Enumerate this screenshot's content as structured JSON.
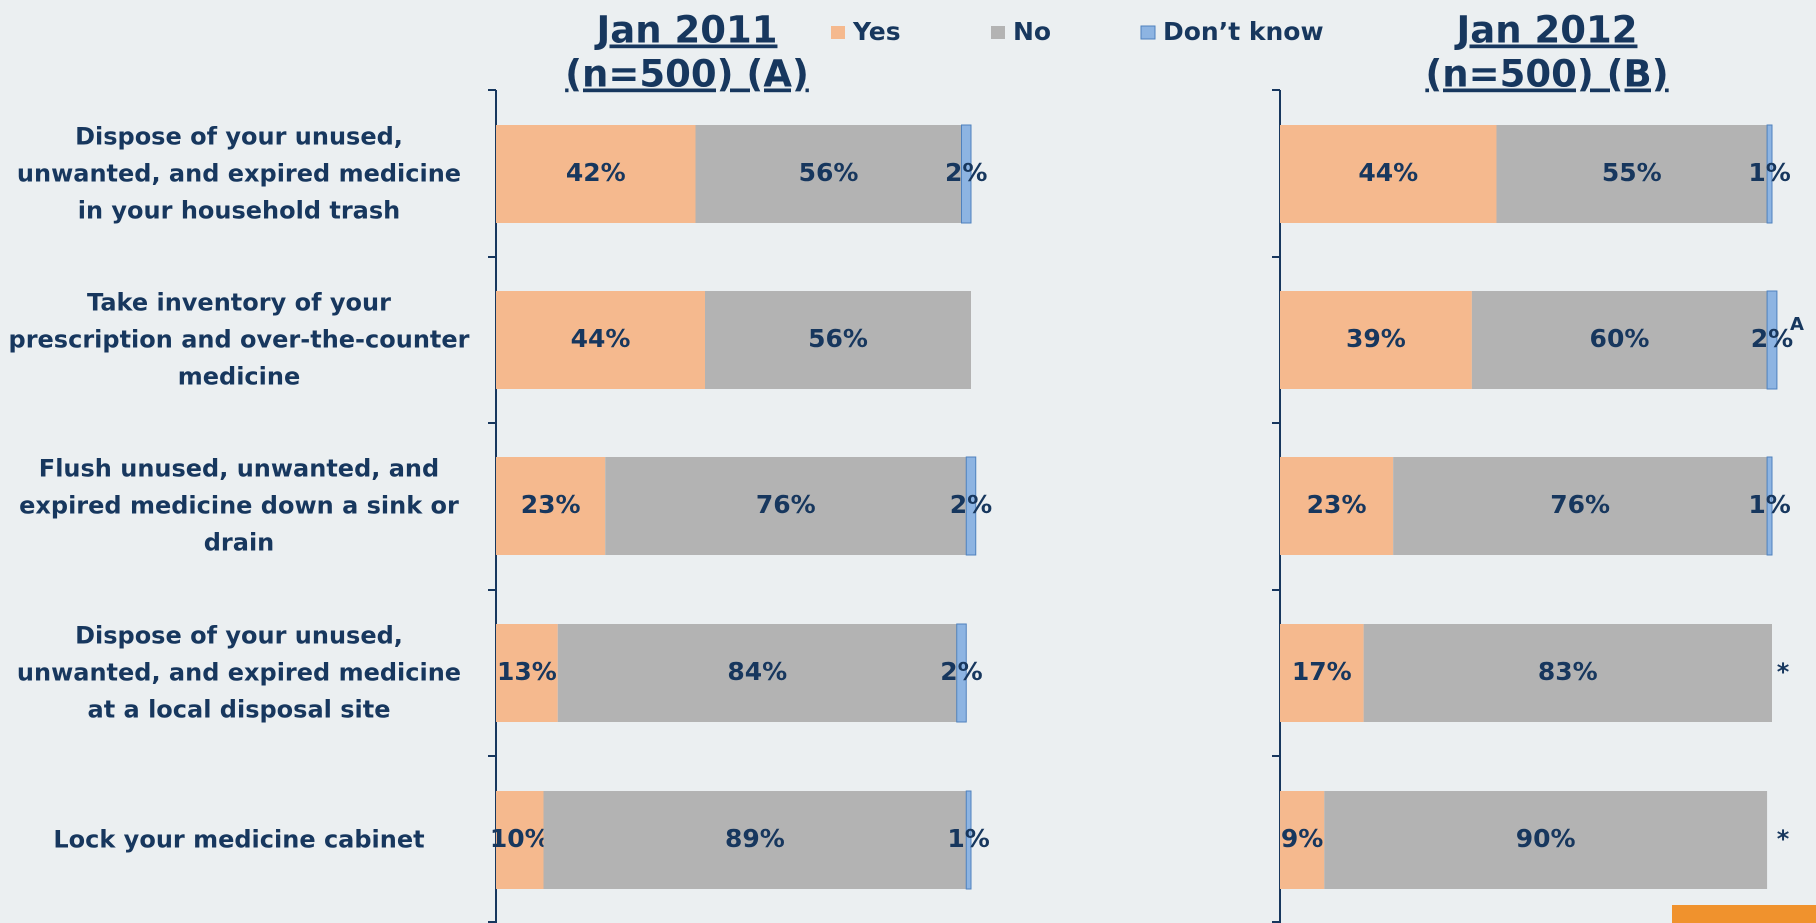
{
  "chart_data": [
    {
      "type": "bar",
      "orientation": "horizontal",
      "stacked": true,
      "title": "Jan 2011",
      "subtitle": "(n=500) (A)",
      "categories": [
        "Dispose of your unused, unwanted, and expired medicine in your household trash",
        "Take inventory of your prescription and over-the-counter medicine",
        "Flush unused, unwanted, and expired medicine down a sink or drain",
        "Dispose of your unused, unwanted, and expired medicine at a local disposal site",
        "Lock your medicine cabinet"
      ],
      "xlim": [
        0,
        100
      ],
      "series": [
        {
          "name": "Yes",
          "color": "#f5b98e",
          "values": [
            42,
            44,
            23,
            13,
            10
          ],
          "value_labels": [
            "42%",
            "44%",
            "23%",
            "13%",
            "10%"
          ]
        },
        {
          "name": "No",
          "color": "#b3b3b3",
          "values": [
            56,
            56,
            76,
            84,
            89
          ],
          "value_labels": [
            "56%",
            "56%",
            "76%",
            "84%",
            "89%"
          ]
        },
        {
          "name": "Don’t know",
          "color": "#8db4e2",
          "values": [
            2,
            null,
            2,
            2,
            1
          ],
          "value_labels": [
            "2%",
            null,
            "2%",
            "2%",
            "1%"
          ]
        }
      ]
    },
    {
      "type": "bar",
      "orientation": "horizontal",
      "stacked": true,
      "title": "Jan 2012",
      "subtitle": "(n=500) (B)",
      "xlim": [
        0,
        100
      ],
      "series": [
        {
          "color": "#f5b98e",
          "values": [
            44,
            39,
            23,
            17,
            9
          ],
          "value_labels": [
            "44%",
            "39%",
            "23%",
            "17%",
            "9%"
          ]
        },
        {
          "color": "#b3b3b3",
          "values": [
            55,
            60,
            76,
            83,
            90
          ],
          "value_labels": [
            "55%",
            "60%",
            "76%",
            "83%",
            "90%"
          ]
        },
        {
          "color": "#8db4e2",
          "values": [
            1,
            2,
            1,
            null,
            null
          ],
          "value_labels": [
            "1%",
            "2%",
            "1%",
            null,
            null
          ]
        }
      ],
      "annotations": [
        null,
        "A",
        null,
        "*",
        "*"
      ]
    }
  ]
}
